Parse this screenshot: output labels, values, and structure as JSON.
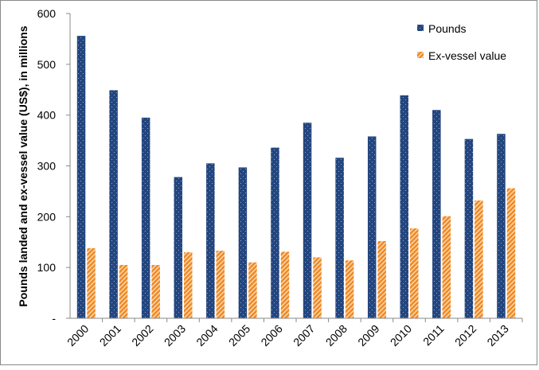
{
  "chart_data": {
    "type": "bar",
    "title": "",
    "xlabel": "",
    "ylabel": "Pounds landed and ex-vessel value (US$), in millions",
    "categories": [
      "2000",
      "2001",
      "2002",
      "2003",
      "2004",
      "2005",
      "2006",
      "2007",
      "2008",
      "2009",
      "2010",
      "2011",
      "2012",
      "2013"
    ],
    "series": [
      {
        "name": "Pounds",
        "color": "#24467f",
        "pattern": "dotted",
        "values": [
          556,
          449,
          395,
          278,
          305,
          297,
          336,
          385,
          316,
          358,
          439,
          410,
          353,
          363
        ]
      },
      {
        "name": "Ex-vessel value",
        "color": "#f08a24",
        "pattern": "diagonal-stripes",
        "values": [
          138,
          105,
          105,
          130,
          133,
          110,
          131,
          120,
          114,
          152,
          177,
          201,
          232,
          256
        ]
      }
    ],
    "ylim": [
      0,
      600
    ],
    "yticks": [
      "-",
      "100",
      "200",
      "300",
      "400",
      "500",
      "600"
    ],
    "grid": false,
    "legend_position": "top-right"
  }
}
